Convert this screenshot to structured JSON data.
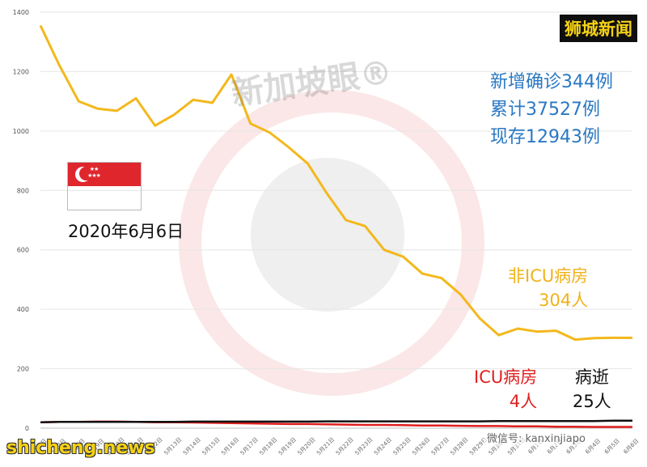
{
  "chart_data": {
    "type": "line",
    "ylim": [
      0,
      1400
    ],
    "yticks": [
      0,
      200,
      400,
      600,
      800,
      1000,
      1200,
      1400
    ],
    "grid": true,
    "categories": [
      "5月6日",
      "5月7日",
      "5月8日",
      "5月9日",
      "5月10日",
      "5月11日",
      "5月12日",
      "5月13日",
      "5月14日",
      "5月15日",
      "5月16日",
      "5月17日",
      "5月18日",
      "5月19日",
      "5月20日",
      "5月21日",
      "5月22日",
      "5月23日",
      "5月24日",
      "5月25日",
      "5月26日",
      "5月27日",
      "5月28日",
      "5月29日",
      "5月30日",
      "5月31日",
      "6月1日",
      "6月2日",
      "6月3日",
      "6月4日",
      "6月5日",
      "6月6日"
    ],
    "series": [
      {
        "name": "非ICU病房",
        "color": "#f3b81c",
        "values": [
          1355,
          1220,
          1100,
          1075,
          1068,
          1110,
          1018,
          1055,
          1105,
          1095,
          1190,
          1025,
          995,
          945,
          890,
          790,
          700,
          680,
          600,
          577,
          520,
          505,
          450,
          370,
          313,
          335,
          325,
          328,
          298,
          303,
          304,
          304
        ]
      },
      {
        "name": "ICU病房",
        "color": "#e01f1f",
        "values": [
          20,
          21,
          21,
          22,
          22,
          21,
          20,
          20,
          19,
          18,
          17,
          16,
          15,
          14,
          14,
          13,
          12,
          11,
          11,
          10,
          9,
          9,
          8,
          7,
          7,
          6,
          6,
          5,
          5,
          4,
          4,
          4
        ]
      },
      {
        "name": "病逝",
        "color": "#111111",
        "values": [
          20,
          21,
          21,
          21,
          21,
          21,
          21,
          21,
          22,
          22,
          22,
          22,
          22,
          22,
          22,
          23,
          23,
          23,
          23,
          23,
          23,
          23,
          23,
          23,
          24,
          24,
          24,
          24,
          24,
          24,
          25,
          25
        ]
      }
    ]
  },
  "labels": {
    "site_badge": "狮城新闻",
    "stats": [
      "新增确诊344例",
      "累计37527例",
      "现存12943例"
    ],
    "date": "2020年6月6日",
    "non_icu": [
      "非ICU病房",
      "304人"
    ],
    "icu": [
      "ICU病房",
      "4人"
    ],
    "deaths": [
      "病逝",
      "25人"
    ],
    "watermark": "新加坡眼®",
    "news_logo": "shicheng.news",
    "wechat": "微信号: kanxinjiapo"
  }
}
